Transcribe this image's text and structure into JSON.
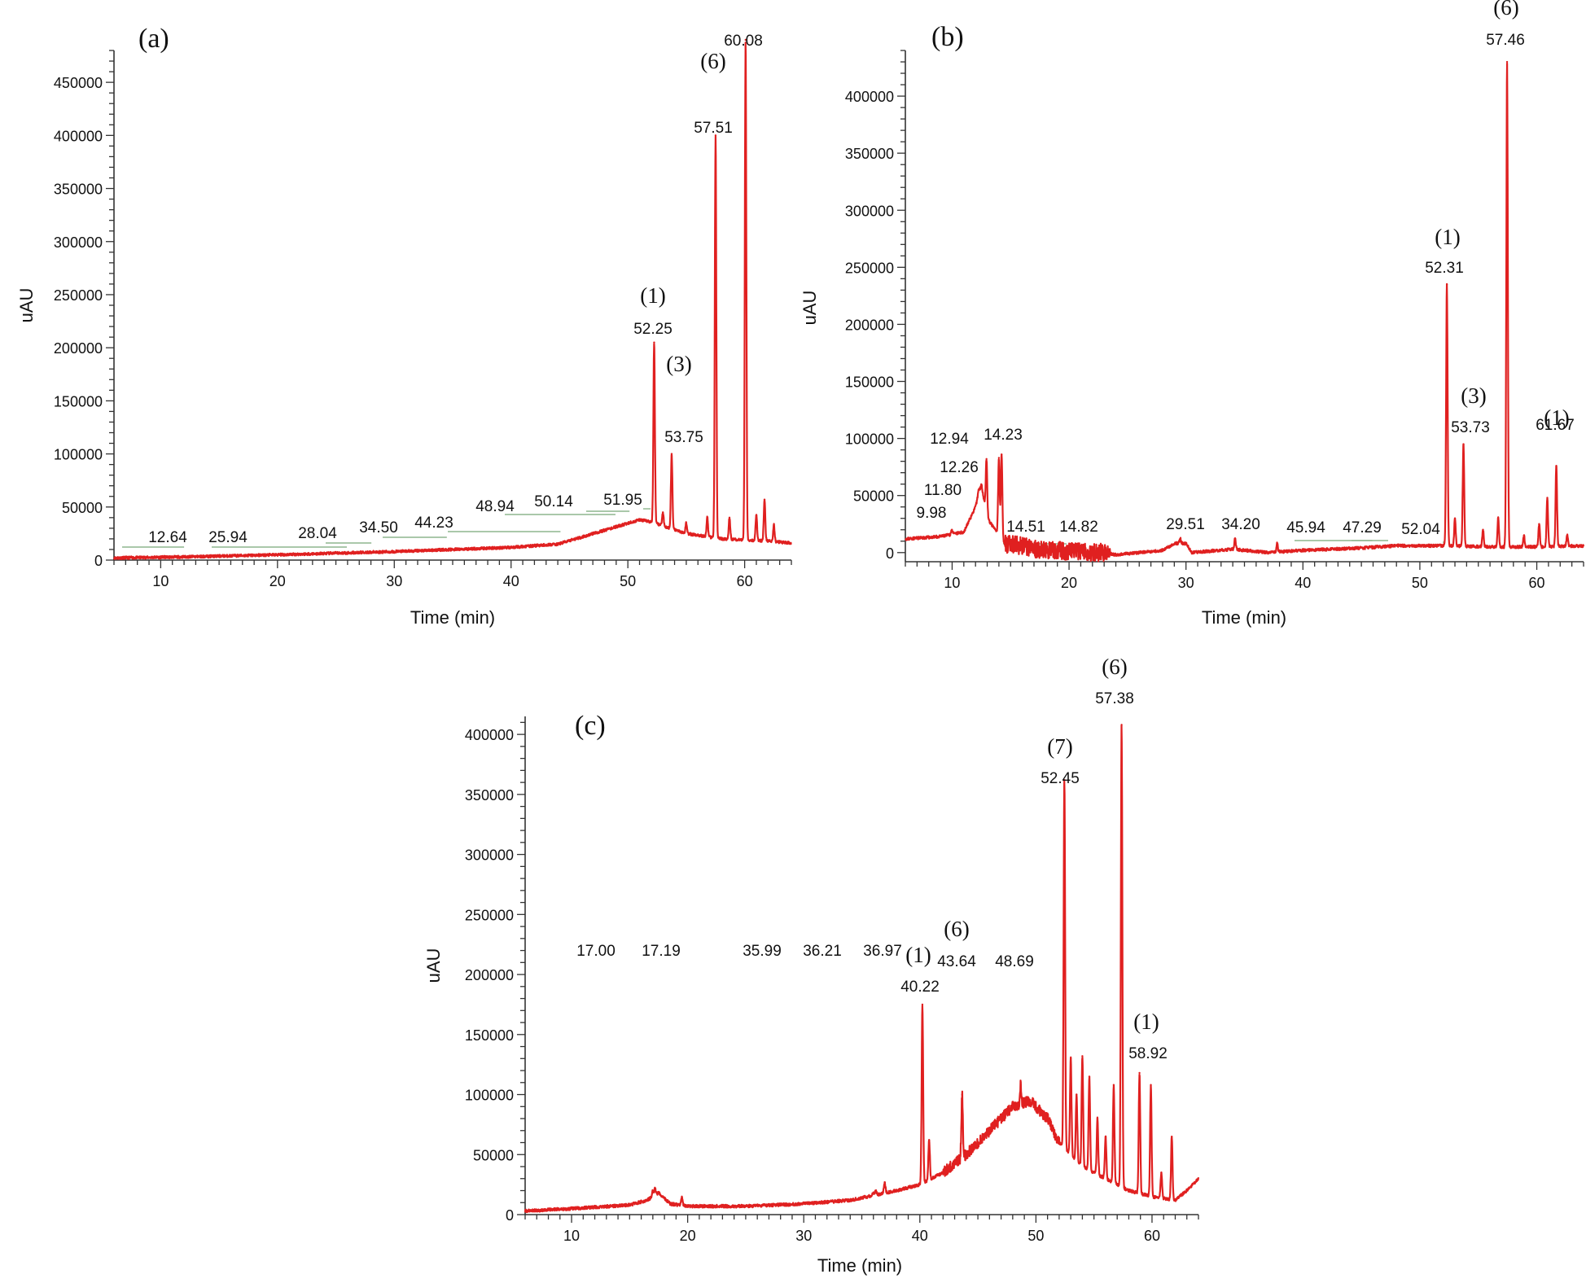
{
  "figure_colors": {
    "trace": "#e02020",
    "leader": "#78a878",
    "axis": "#333333"
  },
  "chart_data": [
    {
      "type": "line",
      "panel_label": "(a)",
      "xlabel": "Time (min)",
      "ylabel": "uAU",
      "xlim": [
        6,
        64
      ],
      "ylim": [
        0,
        480000
      ],
      "x_ticks": [
        10,
        20,
        30,
        40,
        50,
        60
      ],
      "y_ticks": [
        0,
        50000,
        100000,
        150000,
        200000,
        250000,
        300000,
        350000,
        400000,
        450000
      ],
      "baseline": [
        [
          6,
          2000
        ],
        [
          12,
          3000
        ],
        [
          20,
          5000
        ],
        [
          30,
          8000
        ],
        [
          40,
          12000
        ],
        [
          44,
          15000
        ],
        [
          48,
          28000
        ],
        [
          51,
          38000
        ],
        [
          52,
          36000
        ],
        [
          55,
          25000
        ],
        [
          58,
          20000
        ],
        [
          62,
          18000
        ],
        [
          64,
          16000
        ]
      ],
      "peaks": [
        {
          "x": 52.25,
          "y": 205000,
          "label": "52.25",
          "compound": "(1)"
        },
        {
          "x": 53.0,
          "y": 45000
        },
        {
          "x": 53.75,
          "y": 100000,
          "label": "53.75",
          "compound": "(3)"
        },
        {
          "x": 55.0,
          "y": 35000
        },
        {
          "x": 56.8,
          "y": 40000
        },
        {
          "x": 57.51,
          "y": 400000,
          "label": "57.51",
          "compound": "(6)"
        },
        {
          "x": 58.7,
          "y": 40000
        },
        {
          "x": 60.08,
          "y": 490000,
          "label": "60.08"
        },
        {
          "x": 61.0,
          "y": 42000
        },
        {
          "x": 61.7,
          "y": 57000
        },
        {
          "x": 62.5,
          "y": 33000
        }
      ],
      "baseline_labels": [
        {
          "x": 12.64,
          "text": "12.64"
        },
        {
          "x": 25.94,
          "text": "25.94"
        },
        {
          "x": 28.04,
          "text": "28.04"
        },
        {
          "x": 34.5,
          "text": "34.50"
        },
        {
          "x": 44.23,
          "text": "44.23"
        },
        {
          "x": 48.94,
          "text": "48.94"
        },
        {
          "x": 50.14,
          "text": "50.14"
        },
        {
          "x": 51.95,
          "text": "51.95"
        }
      ]
    },
    {
      "type": "line",
      "panel_label": "(b)",
      "xlabel": "Time (min)",
      "ylabel": "uAU",
      "xlim": [
        6,
        64
      ],
      "ylim": [
        -8000,
        440000
      ],
      "x_ticks": [
        10,
        20,
        30,
        40,
        50,
        60
      ],
      "y_ticks": [
        0,
        50000,
        100000,
        150000,
        200000,
        250000,
        300000,
        350000,
        400000
      ],
      "baseline": [
        [
          6,
          12000
        ],
        [
          9,
          14000
        ],
        [
          11,
          18000
        ],
        [
          12,
          40000
        ],
        [
          12.5,
          60000
        ],
        [
          13,
          30000
        ],
        [
          14.5,
          8000
        ],
        [
          18,
          2000
        ],
        [
          23,
          0
        ],
        [
          24,
          -2000
        ],
        [
          28,
          2000
        ],
        [
          29,
          8000
        ],
        [
          30,
          8000
        ],
        [
          30.5,
          0
        ],
        [
          34,
          3000
        ],
        [
          37,
          0
        ],
        [
          40,
          2000
        ],
        [
          45,
          4000
        ],
        [
          48,
          6000
        ],
        [
          52,
          6000
        ],
        [
          56,
          5000
        ],
        [
          60,
          5000
        ],
        [
          64,
          6000
        ]
      ],
      "peaks": [
        {
          "x": 9.98,
          "y": 20000,
          "label": "9.98"
        },
        {
          "x": 11.8,
          "y": 35000,
          "label": "11.80"
        },
        {
          "x": 12.26,
          "y": 55000,
          "label": "12.26"
        },
        {
          "x": 12.94,
          "y": 82000,
          "label": "12.94"
        },
        {
          "x": 14.0,
          "y": 83000
        },
        {
          "x": 14.23,
          "y": 86000,
          "label": "14.23"
        },
        {
          "x": 29.51,
          "y": 12000,
          "label": "29.51"
        },
        {
          "x": 34.2,
          "y": 12000,
          "label": "34.20"
        },
        {
          "x": 37.8,
          "y": 8000
        },
        {
          "x": 52.31,
          "y": 235000,
          "label": "52.31",
          "compound": "(1)"
        },
        {
          "x": 53.0,
          "y": 30000
        },
        {
          "x": 53.73,
          "y": 95000,
          "label": "53.73",
          "compound": "(3)"
        },
        {
          "x": 55.4,
          "y": 20000
        },
        {
          "x": 56.7,
          "y": 30000
        },
        {
          "x": 57.46,
          "y": 430000,
          "label": "57.46",
          "compound": "(6)"
        },
        {
          "x": 58.9,
          "y": 15000
        },
        {
          "x": 60.2,
          "y": 25000
        },
        {
          "x": 60.9,
          "y": 48000
        },
        {
          "x": 61.67,
          "y": 76000,
          "label": "61.67",
          "compound": "(1)"
        },
        {
          "x": 62.6,
          "y": 15000
        }
      ],
      "baseline_labels": [
        {
          "x": 14.51,
          "text": "14.51"
        },
        {
          "x": 14.82,
          "text": "14.82"
        },
        {
          "x": 45.94,
          "text": "45.94"
        },
        {
          "x": 47.29,
          "text": "47.29"
        },
        {
          "x": 52.04,
          "text": "52.04"
        }
      ]
    },
    {
      "type": "line",
      "panel_label": "(c)",
      "xlabel": "Time (min)",
      "ylabel": "uAU",
      "xlim": [
        6,
        64
      ],
      "ylim": [
        0,
        415000
      ],
      "x_ticks": [
        10,
        20,
        30,
        40,
        50,
        60
      ],
      "y_ticks": [
        0,
        50000,
        100000,
        150000,
        200000,
        250000,
        300000,
        350000,
        400000
      ],
      "baseline": [
        [
          6,
          3000
        ],
        [
          10,
          5000
        ],
        [
          15,
          8000
        ],
        [
          16.5,
          12000
        ],
        [
          17.5,
          18000
        ],
        [
          18.5,
          9000
        ],
        [
          20,
          7000
        ],
        [
          25,
          7000
        ],
        [
          30,
          9000
        ],
        [
          34,
          12000
        ],
        [
          36,
          16000
        ],
        [
          38,
          20000
        ],
        [
          40,
          25000
        ],
        [
          42,
          35000
        ],
        [
          44,
          50000
        ],
        [
          46,
          70000
        ],
        [
          48,
          90000
        ],
        [
          49.5,
          95000
        ],
        [
          51,
          80000
        ],
        [
          52,
          60000
        ],
        [
          54,
          40000
        ],
        [
          56,
          30000
        ],
        [
          58,
          20000
        ],
        [
          60,
          15000
        ],
        [
          62,
          12000
        ],
        [
          63,
          20000
        ],
        [
          64,
          30000
        ]
      ],
      "peaks": [
        {
          "x": 17.0,
          "y": 20000,
          "label": "17.00"
        },
        {
          "x": 17.19,
          "y": 22000,
          "label": "17.19"
        },
        {
          "x": 19.5,
          "y": 15000
        },
        {
          "x": 35.99,
          "y": 18000,
          "label": "35.99"
        },
        {
          "x": 36.21,
          "y": 20000,
          "label": "36.21"
        },
        {
          "x": 36.97,
          "y": 27000,
          "label": "36.97"
        },
        {
          "x": 40.22,
          "y": 175000,
          "label": "40.22",
          "compound": "(1)"
        },
        {
          "x": 40.8,
          "y": 62000
        },
        {
          "x": 43.64,
          "y": 100000,
          "label": "43.64",
          "compound": "(6)"
        },
        {
          "x": 48.69,
          "y": 108000,
          "label": "48.69"
        },
        {
          "x": 52.45,
          "y": 362000,
          "label": "52.45",
          "compound": "(7)"
        },
        {
          "x": 53.0,
          "y": 130000
        },
        {
          "x": 53.5,
          "y": 100000
        },
        {
          "x": 54.0,
          "y": 132000
        },
        {
          "x": 54.6,
          "y": 115000
        },
        {
          "x": 55.3,
          "y": 80000
        },
        {
          "x": 56.0,
          "y": 65000
        },
        {
          "x": 56.7,
          "y": 108000
        },
        {
          "x": 57.38,
          "y": 408000,
          "label": "57.38",
          "compound": "(6)"
        },
        {
          "x": 58.92,
          "y": 118000,
          "label": "58.92",
          "compound": "(1)"
        },
        {
          "x": 59.9,
          "y": 108000
        },
        {
          "x": 60.8,
          "y": 35000
        },
        {
          "x": 61.7,
          "y": 65000
        }
      ],
      "baseline_labels": []
    }
  ]
}
